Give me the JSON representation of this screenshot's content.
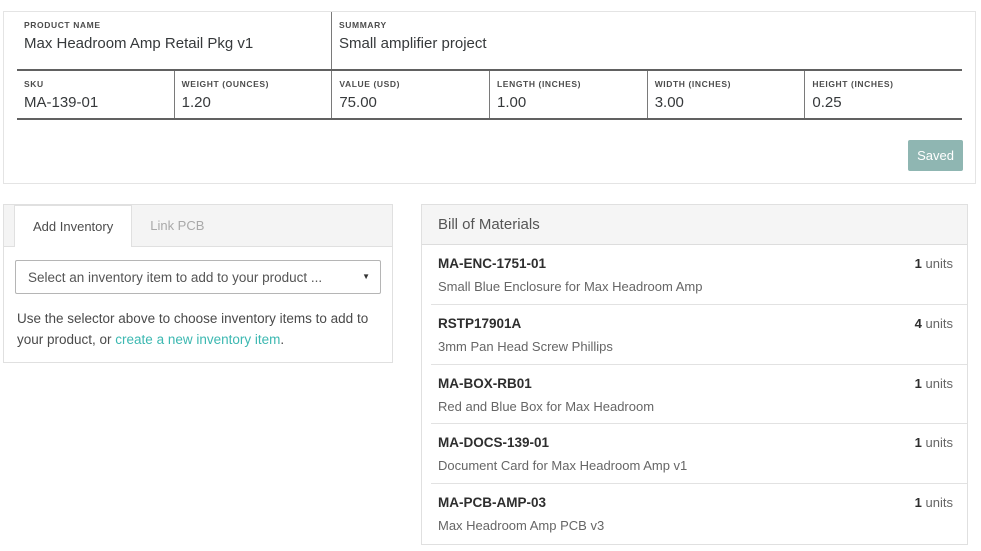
{
  "colors": {
    "accent_link_teal": "#3cb8b1",
    "saved_button_bg": "#8fb6b2",
    "panel_header_bg": "#f5f5f5",
    "field_underline": "#616161"
  },
  "top_card": {
    "row1": [
      {
        "label": "PRODUCT NAME",
        "value": "Max Headroom Amp Retail Pkg v1"
      },
      {
        "label": "SUMMARY",
        "value": "Small amplifier project"
      }
    ],
    "row2": [
      {
        "label": "SKU",
        "value": "MA-139-01"
      },
      {
        "label": "WEIGHT (OUNCES)",
        "value": "1.20"
      },
      {
        "label": "VALUE (USD)",
        "value": "75.00"
      },
      {
        "label": "LENGTH (INCHES)",
        "value": "1.00"
      },
      {
        "label": "WIDTH (INCHES)",
        "value": "3.00"
      },
      {
        "label": "HEIGHT (INCHES)",
        "value": "0.25"
      }
    ],
    "saved_button": "Saved"
  },
  "inventory_panel": {
    "tabs": [
      {
        "label": "Add Inventory"
      },
      {
        "label": "Link PCB"
      }
    ],
    "select_placeholder": "Select an inventory item to add to your product ...",
    "dropdown_arrow": "▼",
    "help_text_before": "Use the selector above to choose inventory items to add to your product, or ",
    "help_link": "create a new inventory item",
    "help_text_after": "."
  },
  "bom": {
    "title": "Bill of Materials",
    "unit_label": "units",
    "items": [
      {
        "sku": "MA-ENC-1751-01",
        "description": "Small Blue Enclosure for Max Headroom Amp",
        "qty": "1"
      },
      {
        "sku": "RSTP17901A",
        "description": "3mm Pan Head Screw Phillips",
        "qty": "4"
      },
      {
        "sku": "MA-BOX-RB01",
        "description": "Red and Blue Box for Max Headroom",
        "qty": "1"
      },
      {
        "sku": "MA-DOCS-139-01",
        "description": "Document Card for Max Headroom Amp v1",
        "qty": "1"
      },
      {
        "sku": "MA-PCB-AMP-03",
        "description": "Max Headroom Amp PCB v3",
        "qty": "1"
      }
    ]
  }
}
